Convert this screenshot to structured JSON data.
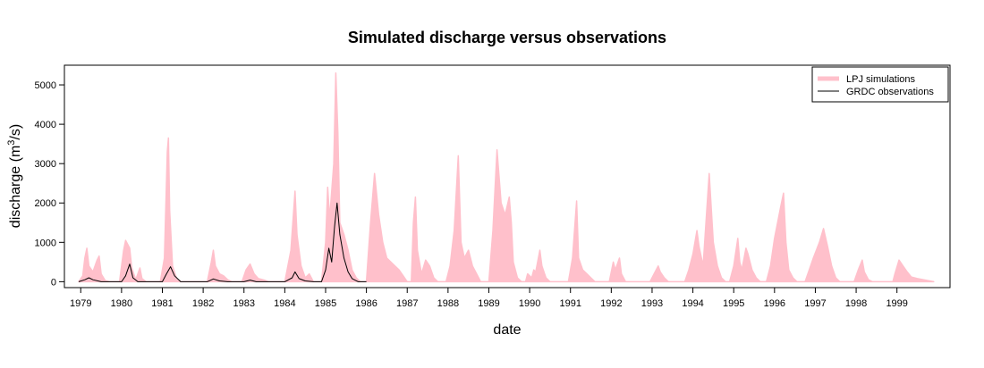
{
  "chart_data": {
    "type": "area",
    "title": "Simulated discharge versus observations",
    "xlabel": "date",
    "ylabel_main": "discharge (m",
    "ylabel_sup": "3",
    "ylabel_tail": "/s)",
    "xlim": [
      1978.6,
      2000.3
    ],
    "ylim": [
      -150,
      5500
    ],
    "x_ticks": [
      1979,
      1980,
      1981,
      1982,
      1983,
      1984,
      1985,
      1986,
      1987,
      1988,
      1989,
      1990,
      1991,
      1992,
      1993,
      1994,
      1995,
      1996,
      1997,
      1998,
      1999
    ],
    "x_tick_labels": [
      "1979",
      "1980",
      "1981",
      "1982",
      "1983",
      "1984",
      "1985",
      "1986",
      "1987",
      "1988",
      "1989",
      "1990",
      "1991",
      "1992",
      "1993",
      "1994",
      "1995",
      "1996",
      "1997",
      "1998",
      "1999"
    ],
    "y_ticks": [
      0,
      1000,
      2000,
      3000,
      4000,
      5000
    ],
    "y_tick_labels": [
      "0",
      "1000",
      "2000",
      "3000",
      "4000",
      "5000"
    ],
    "grid": false,
    "legend_position": "top-right",
    "series": [
      {
        "name": "LPJ simulations",
        "color": "#ffc0cb",
        "style": "filled-area",
        "points": [
          [
            1978.95,
            0
          ],
          [
            1979.05,
            150
          ],
          [
            1979.1,
            600
          ],
          [
            1979.15,
            850
          ],
          [
            1979.2,
            400
          ],
          [
            1979.3,
            250
          ],
          [
            1979.4,
            550
          ],
          [
            1979.45,
            650
          ],
          [
            1979.5,
            200
          ],
          [
            1979.6,
            30
          ],
          [
            1979.7,
            0
          ],
          [
            1979.95,
            0
          ],
          [
            1980.05,
            800
          ],
          [
            1980.1,
            1050
          ],
          [
            1980.2,
            850
          ],
          [
            1980.25,
            350
          ],
          [
            1980.35,
            50
          ],
          [
            1980.45,
            350
          ],
          [
            1980.5,
            80
          ],
          [
            1980.6,
            0
          ],
          [
            1980.95,
            0
          ],
          [
            1981.05,
            600
          ],
          [
            1981.12,
            3300
          ],
          [
            1981.15,
            3650
          ],
          [
            1981.18,
            1800
          ],
          [
            1981.25,
            400
          ],
          [
            1981.35,
            80
          ],
          [
            1981.45,
            0
          ],
          [
            1982.1,
            0
          ],
          [
            1982.2,
            500
          ],
          [
            1982.25,
            800
          ],
          [
            1982.3,
            400
          ],
          [
            1982.4,
            200
          ],
          [
            1982.5,
            150
          ],
          [
            1982.6,
            50
          ],
          [
            1982.7,
            0
          ],
          [
            1982.95,
            0
          ],
          [
            1983.05,
            300
          ],
          [
            1983.15,
            450
          ],
          [
            1983.25,
            200
          ],
          [
            1983.35,
            80
          ],
          [
            1983.5,
            40
          ],
          [
            1983.6,
            0
          ],
          [
            1984.0,
            0
          ],
          [
            1984.15,
            800
          ],
          [
            1984.25,
            2300
          ],
          [
            1984.3,
            1200
          ],
          [
            1984.4,
            400
          ],
          [
            1984.5,
            100
          ],
          [
            1984.6,
            200
          ],
          [
            1984.7,
            0
          ],
          [
            1984.9,
            0
          ],
          [
            1985.0,
            1000
          ],
          [
            1985.05,
            2400
          ],
          [
            1985.1,
            1600
          ],
          [
            1985.15,
            2300
          ],
          [
            1985.2,
            3000
          ],
          [
            1985.25,
            5300
          ],
          [
            1985.3,
            3800
          ],
          [
            1985.35,
            1500
          ],
          [
            1985.45,
            1200
          ],
          [
            1985.55,
            800
          ],
          [
            1985.65,
            300
          ],
          [
            1985.75,
            100
          ],
          [
            1985.85,
            0
          ],
          [
            1986.0,
            0
          ],
          [
            1986.1,
            1500
          ],
          [
            1986.2,
            2750
          ],
          [
            1986.3,
            1700
          ],
          [
            1986.4,
            1000
          ],
          [
            1986.5,
            600
          ],
          [
            1986.6,
            500
          ],
          [
            1986.7,
            400
          ],
          [
            1986.8,
            300
          ],
          [
            1986.9,
            150
          ],
          [
            1987.0,
            0
          ],
          [
            1987.1,
            0
          ],
          [
            1987.15,
            1500
          ],
          [
            1987.2,
            2150
          ],
          [
            1987.25,
            800
          ],
          [
            1987.35,
            200
          ],
          [
            1987.45,
            550
          ],
          [
            1987.55,
            400
          ],
          [
            1987.65,
            100
          ],
          [
            1987.75,
            0
          ],
          [
            1987.95,
            0
          ],
          [
            1988.05,
            400
          ],
          [
            1988.15,
            1300
          ],
          [
            1988.25,
            3200
          ],
          [
            1988.32,
            1000
          ],
          [
            1988.4,
            600
          ],
          [
            1988.5,
            800
          ],
          [
            1988.6,
            400
          ],
          [
            1988.7,
            200
          ],
          [
            1988.8,
            0
          ],
          [
            1989.0,
            0
          ],
          [
            1989.1,
            1300
          ],
          [
            1989.2,
            3350
          ],
          [
            1989.3,
            2000
          ],
          [
            1989.4,
            1700
          ],
          [
            1989.5,
            2150
          ],
          [
            1989.55,
            1500
          ],
          [
            1989.6,
            500
          ],
          [
            1989.7,
            100
          ],
          [
            1989.8,
            0
          ],
          [
            1989.9,
            0
          ],
          [
            1989.95,
            200
          ],
          [
            1990.0,
            150
          ],
          [
            1990.05,
            100
          ],
          [
            1990.1,
            300
          ],
          [
            1990.15,
            250
          ],
          [
            1990.25,
            800
          ],
          [
            1990.3,
            400
          ],
          [
            1990.4,
            100
          ],
          [
            1990.5,
            0
          ],
          [
            1990.95,
            0
          ],
          [
            1991.05,
            600
          ],
          [
            1991.15,
            2050
          ],
          [
            1991.2,
            600
          ],
          [
            1991.3,
            300
          ],
          [
            1991.4,
            200
          ],
          [
            1991.5,
            100
          ],
          [
            1991.6,
            0
          ],
          [
            1991.95,
            0
          ],
          [
            1992.05,
            500
          ],
          [
            1992.1,
            300
          ],
          [
            1992.2,
            600
          ],
          [
            1992.25,
            200
          ],
          [
            1992.35,
            0
          ],
          [
            1992.95,
            0
          ],
          [
            1993.05,
            200
          ],
          [
            1993.15,
            400
          ],
          [
            1993.2,
            250
          ],
          [
            1993.3,
            100
          ],
          [
            1993.4,
            0
          ],
          [
            1993.8,
            0
          ],
          [
            1993.9,
            300
          ],
          [
            1994.0,
            700
          ],
          [
            1994.1,
            1300
          ],
          [
            1994.15,
            900
          ],
          [
            1994.25,
            400
          ],
          [
            1994.3,
            1200
          ],
          [
            1994.4,
            2750
          ],
          [
            1994.5,
            1000
          ],
          [
            1994.6,
            400
          ],
          [
            1994.7,
            100
          ],
          [
            1994.8,
            0
          ],
          [
            1994.9,
            0
          ],
          [
            1995.0,
            400
          ],
          [
            1995.1,
            1100
          ],
          [
            1995.15,
            500
          ],
          [
            1995.2,
            300
          ],
          [
            1995.3,
            850
          ],
          [
            1995.35,
            700
          ],
          [
            1995.45,
            300
          ],
          [
            1995.55,
            100
          ],
          [
            1995.65,
            0
          ],
          [
            1995.8,
            0
          ],
          [
            1995.9,
            400
          ],
          [
            1996.0,
            1100
          ],
          [
            1996.15,
            1900
          ],
          [
            1996.22,
            2250
          ],
          [
            1996.28,
            1000
          ],
          [
            1996.35,
            300
          ],
          [
            1996.45,
            100
          ],
          [
            1996.55,
            0
          ],
          [
            1996.75,
            0
          ],
          [
            1996.85,
            300
          ],
          [
            1996.95,
            600
          ],
          [
            1997.1,
            1000
          ],
          [
            1997.2,
            1350
          ],
          [
            1997.3,
            900
          ],
          [
            1997.4,
            400
          ],
          [
            1997.5,
            100
          ],
          [
            1997.6,
            0
          ],
          [
            1997.95,
            0
          ],
          [
            1998.05,
            300
          ],
          [
            1998.15,
            550
          ],
          [
            1998.2,
            250
          ],
          [
            1998.3,
            50
          ],
          [
            1998.4,
            0
          ],
          [
            1998.9,
            0
          ],
          [
            1998.95,
            200
          ],
          [
            1999.05,
            550
          ],
          [
            1999.15,
            400
          ],
          [
            1999.25,
            250
          ],
          [
            1999.35,
            120
          ],
          [
            1999.5,
            80
          ],
          [
            1999.7,
            40
          ],
          [
            1999.9,
            0
          ]
        ]
      },
      {
        "name": "GRDC observations",
        "color": "#000000",
        "style": "line",
        "points": [
          [
            1978.95,
            0
          ],
          [
            1979.1,
            50
          ],
          [
            1979.2,
            100
          ],
          [
            1979.3,
            50
          ],
          [
            1979.5,
            0
          ],
          [
            1980.0,
            0
          ],
          [
            1980.1,
            150
          ],
          [
            1980.2,
            450
          ],
          [
            1980.28,
            100
          ],
          [
            1980.4,
            0
          ],
          [
            1981.0,
            0
          ],
          [
            1981.1,
            200
          ],
          [
            1981.2,
            380
          ],
          [
            1981.3,
            150
          ],
          [
            1981.45,
            0
          ],
          [
            1982.1,
            0
          ],
          [
            1982.25,
            70
          ],
          [
            1982.4,
            20
          ],
          [
            1982.6,
            0
          ],
          [
            1983.0,
            0
          ],
          [
            1983.15,
            40
          ],
          [
            1983.3,
            0
          ],
          [
            1984.0,
            0
          ],
          [
            1984.18,
            100
          ],
          [
            1984.25,
            250
          ],
          [
            1984.35,
            80
          ],
          [
            1984.5,
            20
          ],
          [
            1984.7,
            0
          ],
          [
            1984.9,
            0
          ],
          [
            1985.0,
            300
          ],
          [
            1985.08,
            850
          ],
          [
            1985.15,
            500
          ],
          [
            1985.22,
            1400
          ],
          [
            1985.28,
            2000
          ],
          [
            1985.35,
            1200
          ],
          [
            1985.45,
            600
          ],
          [
            1985.55,
            250
          ],
          [
            1985.65,
            80
          ],
          [
            1985.8,
            0
          ],
          [
            1986.0,
            0
          ]
        ]
      }
    ]
  }
}
